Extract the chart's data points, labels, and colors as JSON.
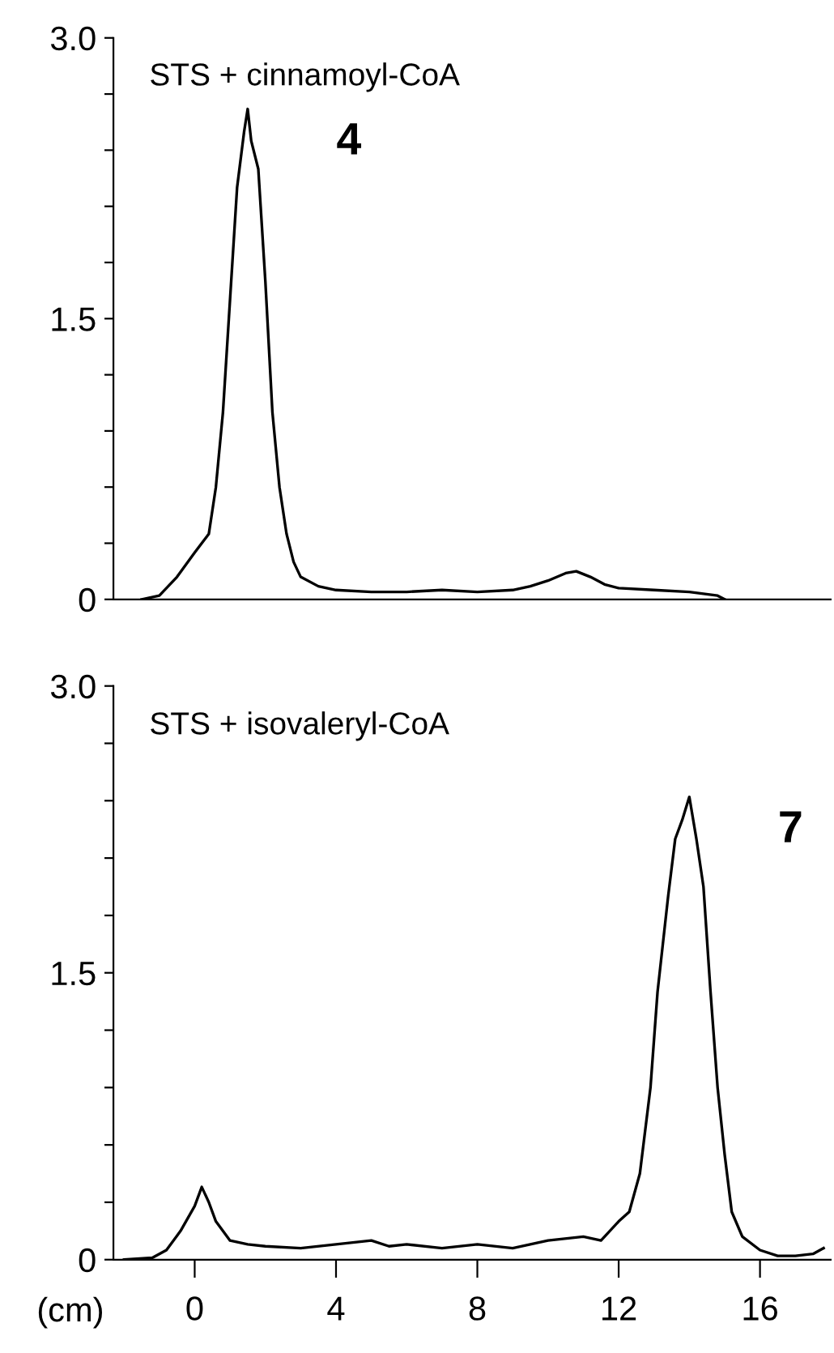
{
  "chart_data": [
    {
      "type": "line",
      "title": "STS + cinnamoyl-CoA",
      "xlim": [
        -2.3,
        18
      ],
      "ylim": [
        0,
        3.0
      ],
      "tick_labels": "y",
      "grid": false,
      "marker": "none",
      "line_style": "solid",
      "yticks": [
        0,
        {
          "value": 0.3,
          "label": null
        },
        {
          "value": 0.6,
          "label": null
        },
        {
          "value": 0.9,
          "label": null
        },
        {
          "value": 1.2,
          "label": null
        },
        1.5,
        {
          "value": 1.8,
          "label": null
        },
        {
          "value": 2.1,
          "label": null
        },
        {
          "value": 2.4,
          "label": null
        },
        {
          "value": 2.7,
          "label": null
        },
        {
          "value": 3.0,
          "label": "3.0"
        }
      ],
      "annotations": [
        "4"
      ],
      "series": [
        {
          "color": "#000000",
          "x": [
            -1.5,
            -1.0,
            -0.5,
            0,
            0.4,
            0.6,
            0.8,
            1.0,
            1.2,
            1.4,
            1.5,
            1.6,
            1.8,
            2.0,
            2.2,
            2.4,
            2.6,
            2.8,
            3.0,
            3.5,
            4,
            5,
            6,
            7,
            8,
            9,
            9.5,
            10,
            10.5,
            10.8,
            11.2,
            11.6,
            12,
            13,
            14,
            14.8,
            15
          ],
          "values": [
            0,
            0.02,
            0.12,
            0.25,
            0.35,
            0.6,
            1.0,
            1.6,
            2.2,
            2.5,
            2.62,
            2.45,
            2.3,
            1.7,
            1.0,
            0.6,
            0.35,
            0.2,
            0.12,
            0.07,
            0.05,
            0.04,
            0.04,
            0.05,
            0.04,
            0.05,
            0.07,
            0.1,
            0.14,
            0.15,
            0.12,
            0.08,
            0.06,
            0.05,
            0.04,
            0.02,
            0
          ]
        }
      ]
    },
    {
      "type": "line",
      "title": "STS + isovaleryl-CoA",
      "xlabel": "(cm)",
      "xlim": [
        -2.3,
        18
      ],
      "ylim": [
        0,
        3.0
      ],
      "grid": false,
      "marker": "none",
      "line_style": "solid",
      "xticks": [
        0,
        4,
        8,
        12,
        16
      ],
      "yticks": [
        0,
        {
          "value": 0.3,
          "label": null
        },
        {
          "value": 0.6,
          "label": null
        },
        {
          "value": 0.9,
          "label": null
        },
        {
          "value": 1.2,
          "label": null
        },
        1.5,
        {
          "value": 1.8,
          "label": null
        },
        {
          "value": 2.1,
          "label": null
        },
        {
          "value": 2.4,
          "label": null
        },
        {
          "value": 2.7,
          "label": null
        },
        {
          "value": 3.0,
          "label": "3.0"
        }
      ],
      "annotations": [
        "7"
      ],
      "series": [
        {
          "color": "#000000",
          "x": [
            -2,
            -1.2,
            -0.8,
            -0.4,
            0,
            0.2,
            0.4,
            0.6,
            1.0,
            1.5,
            2,
            3,
            4,
            5,
            5.5,
            6,
            7,
            8,
            9,
            10,
            11,
            11.5,
            12,
            12.3,
            12.6,
            12.9,
            13.1,
            13.4,
            13.6,
            13.8,
            14,
            14.2,
            14.4,
            14.6,
            14.8,
            15,
            15.2,
            15.5,
            16,
            16.5,
            17,
            17.5,
            17.8
          ],
          "values": [
            0,
            0.01,
            0.05,
            0.15,
            0.28,
            0.38,
            0.3,
            0.2,
            0.1,
            0.08,
            0.07,
            0.06,
            0.08,
            0.1,
            0.07,
            0.08,
            0.06,
            0.08,
            0.06,
            0.1,
            0.12,
            0.1,
            0.2,
            0.25,
            0.45,
            0.9,
            1.4,
            1.9,
            2.2,
            2.3,
            2.42,
            2.2,
            1.95,
            1.4,
            0.9,
            0.55,
            0.25,
            0.12,
            0.05,
            0.02,
            0.02,
            0.03,
            0.06
          ]
        }
      ]
    }
  ]
}
